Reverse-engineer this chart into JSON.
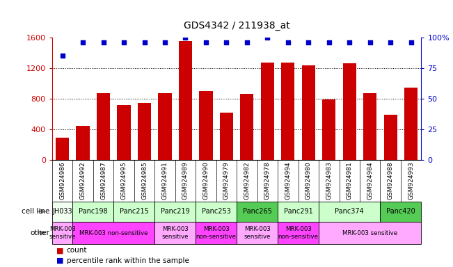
{
  "title": "GDS4342 / 211938_at",
  "samples": [
    "GSM924986",
    "GSM924992",
    "GSM924987",
    "GSM924995",
    "GSM924985",
    "GSM924991",
    "GSM924989",
    "GSM924990",
    "GSM924979",
    "GSM924982",
    "GSM924978",
    "GSM924994",
    "GSM924980",
    "GSM924983",
    "GSM924981",
    "GSM924984",
    "GSM924988",
    "GSM924993"
  ],
  "counts": [
    290,
    450,
    870,
    720,
    750,
    870,
    1550,
    900,
    620,
    860,
    1270,
    1270,
    1240,
    790,
    1260,
    870,
    590,
    950
  ],
  "percentiles": [
    85,
    96,
    96,
    96,
    96,
    96,
    100,
    96,
    96,
    96,
    100,
    96,
    96,
    96,
    96,
    96,
    96,
    96
  ],
  "cell_lines": [
    {
      "label": "JH033",
      "start": 0,
      "end": 1,
      "color": "#f0fff0"
    },
    {
      "label": "Panc198",
      "start": 1,
      "end": 3,
      "color": "#ccffcc"
    },
    {
      "label": "Panc215",
      "start": 3,
      "end": 5,
      "color": "#ccffcc"
    },
    {
      "label": "Panc219",
      "start": 5,
      "end": 7,
      "color": "#ccffcc"
    },
    {
      "label": "Panc253",
      "start": 7,
      "end": 9,
      "color": "#ccffcc"
    },
    {
      "label": "Panc265",
      "start": 9,
      "end": 11,
      "color": "#55cc55"
    },
    {
      "label": "Panc291",
      "start": 11,
      "end": 13,
      "color": "#ccffcc"
    },
    {
      "label": "Panc374",
      "start": 13,
      "end": 16,
      "color": "#ccffcc"
    },
    {
      "label": "Panc420",
      "start": 16,
      "end": 18,
      "color": "#55cc55"
    }
  ],
  "other_groups": [
    {
      "label": "MRK-003\nsensitive",
      "start": 0,
      "end": 1,
      "color": "#ffaaff"
    },
    {
      "label": "MRK-003 non-sensitive",
      "start": 1,
      "end": 5,
      "color": "#ff44ff"
    },
    {
      "label": "MRK-003\nsensitive",
      "start": 5,
      "end": 7,
      "color": "#ffaaff"
    },
    {
      "label": "MRK-003\nnon-sensitive",
      "start": 7,
      "end": 9,
      "color": "#ff44ff"
    },
    {
      "label": "MRK-003\nsensitive",
      "start": 9,
      "end": 11,
      "color": "#ffaaff"
    },
    {
      "label": "MRK-003\nnon-sensitive",
      "start": 11,
      "end": 13,
      "color": "#ff44ff"
    },
    {
      "label": "MRK-003 sensitive",
      "start": 13,
      "end": 18,
      "color": "#ffaaff"
    }
  ],
  "bar_color": "#cc0000",
  "dot_color": "#0000cc",
  "ylim_left": [
    0,
    1600
  ],
  "ylim_right": [
    0,
    100
  ],
  "yticks_left": [
    0,
    400,
    800,
    1200,
    1600
  ],
  "yticks_right": [
    0,
    25,
    50,
    75,
    100
  ],
  "left_axis_color": "#cc0000",
  "right_axis_color": "#0000cc",
  "legend_count_label": "count",
  "legend_pct_label": "percentile rank within the sample"
}
